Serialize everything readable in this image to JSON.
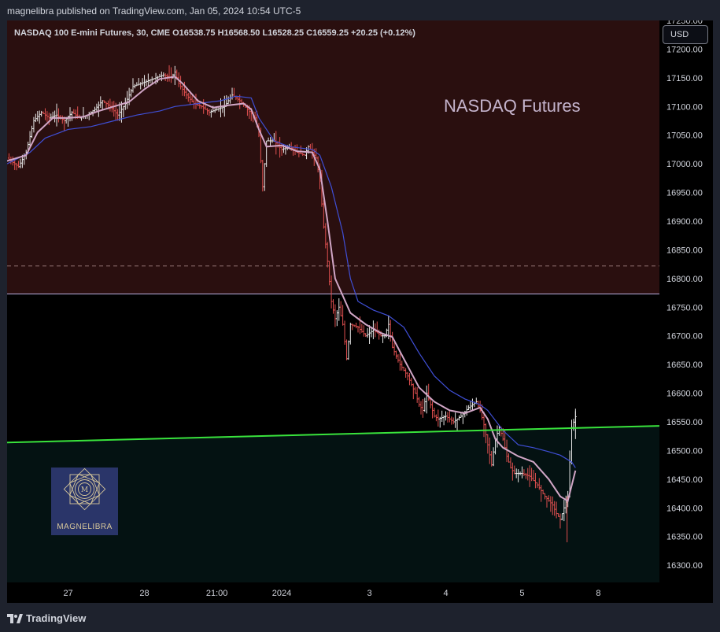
{
  "header": {
    "publisher_line": "magnelibra published on TradingView.com, Jan 05, 2024 10:54 UTC-5"
  },
  "legend": {
    "text": "NASDAQ 100 E-mini Futures, 30, CME  O16538.75  H16568.50  L16528.25  C16559.25  +20.25 (+0.12%)"
  },
  "currency_button": "USD",
  "watermark_text": "NASDAQ Futures",
  "logo_text": "MAGNELIBRA",
  "footer": {
    "brand": "TradingView"
  },
  "colors": {
    "upper_zone": "#2a0f0f",
    "lower_zone": "#041212",
    "support_line": "#39e33c",
    "ema_fast": "#d1a6c6",
    "ema_slow": "#3f4fd6",
    "candle_up": "#e8e8e8",
    "candle_down": "#e05050"
  },
  "chart_data": {
    "type": "line",
    "title": "NASDAQ 100 E-mini Futures, 30, CME",
    "xlabel": "",
    "ylabel": "",
    "currency": "USD",
    "ylim": [
      16270,
      17250
    ],
    "y_ticks": [
      17250,
      17200,
      17150,
      17100,
      17050,
      17000,
      16950,
      16900,
      16850,
      16800,
      16750,
      16700,
      16650,
      16600,
      16550,
      16500,
      16450,
      16400,
      16350,
      16300
    ],
    "y_tick_labels": [
      "17250.00",
      "17200.00",
      "17150.00",
      "17100.00",
      "17050.00",
      "17000.00",
      "16950.00",
      "16900.00",
      "16850.00",
      "16800.00",
      "16750.00",
      "16700.00",
      "16650.00",
      "16600.00",
      "16550.00",
      "16500.00",
      "16450.00",
      "16400.00",
      "16350.00",
      "16300.00"
    ],
    "x_ticks": [
      {
        "label": "27",
        "t": 16
      },
      {
        "label": "28",
        "t": 36
      },
      {
        "label": "21:00",
        "t": 55
      },
      {
        "label": "2024",
        "t": 72
      },
      {
        "label": "3",
        "t": 95
      },
      {
        "label": "4",
        "t": 115
      },
      {
        "label": "5",
        "t": 135
      },
      {
        "label": "8",
        "t": 155
      }
    ],
    "x_range": [
      0,
      171
    ],
    "ohlc": {
      "open": 16538.75,
      "high": 16568.5,
      "low": 16528.25,
      "close": 16559.25,
      "change": "+20.25 (+0.12%)"
    },
    "zones": {
      "resistance_top": 16773,
      "resistance_dashed": 16822
    },
    "support_line": {
      "t0": 0,
      "y0": 16514,
      "t1": 171,
      "y1": 16543
    },
    "series": [
      {
        "name": "",
        "kind": "price",
        "points": [
          [
            0,
            17010
          ],
          [
            3,
            16995
          ],
          [
            5,
            17020
          ],
          [
            7,
            17075
          ],
          [
            9,
            17090
          ],
          [
            11,
            17080
          ],
          [
            13,
            17085
          ],
          [
            15,
            17075
          ],
          [
            17,
            17090
          ],
          [
            19,
            17080
          ],
          [
            21,
            17085
          ],
          [
            23,
            17095
          ],
          [
            25,
            17110
          ],
          [
            27,
            17100
          ],
          [
            29,
            17085
          ],
          [
            31,
            17105
          ],
          [
            33,
            17135
          ],
          [
            35,
            17140
          ],
          [
            37,
            17145
          ],
          [
            39,
            17150
          ],
          [
            41,
            17155
          ],
          [
            43,
            17150
          ],
          [
            44,
            17160
          ],
          [
            45,
            17140
          ],
          [
            47,
            17120
          ],
          [
            49,
            17105
          ],
          [
            51,
            17100
          ],
          [
            53,
            17090
          ],
          [
            55,
            17095
          ],
          [
            57,
            17100
          ],
          [
            59,
            17120
          ],
          [
            61,
            17110
          ],
          [
            63,
            17095
          ],
          [
            65,
            17080
          ],
          [
            66,
            17050
          ],
          [
            67,
            16960
          ],
          [
            68,
            17040
          ],
          [
            70,
            17040
          ],
          [
            72,
            17025
          ],
          [
            74,
            17030
          ],
          [
            76,
            17020
          ],
          [
            78,
            17015
          ],
          [
            79,
            17030
          ],
          [
            81,
            17010
          ],
          [
            82,
            16970
          ],
          [
            83,
            16890
          ],
          [
            84,
            16830
          ],
          [
            85,
            16760
          ],
          [
            86,
            16730
          ],
          [
            87,
            16750
          ],
          [
            88,
            16720
          ],
          [
            89,
            16660
          ],
          [
            90,
            16720
          ],
          [
            92,
            16715
          ],
          [
            94,
            16700
          ],
          [
            96,
            16710
          ],
          [
            98,
            16700
          ],
          [
            99,
            16700
          ],
          [
            100,
            16720
          ],
          [
            101,
            16680
          ],
          [
            103,
            16650
          ],
          [
            105,
            16630
          ],
          [
            107,
            16600
          ],
          [
            108,
            16580
          ],
          [
            109,
            16570
          ],
          [
            110,
            16600
          ],
          [
            111,
            16580
          ],
          [
            112,
            16560
          ],
          [
            113,
            16555
          ],
          [
            115,
            16560
          ],
          [
            117,
            16550
          ],
          [
            119,
            16560
          ],
          [
            121,
            16575
          ],
          [
            123,
            16585
          ],
          [
            124,
            16570
          ],
          [
            125,
            16545
          ],
          [
            126,
            16510
          ],
          [
            127,
            16475
          ],
          [
            128,
            16520
          ],
          [
            129,
            16540
          ],
          [
            130,
            16520
          ],
          [
            131,
            16490
          ],
          [
            132,
            16470
          ],
          [
            133,
            16460
          ],
          [
            135,
            16460
          ],
          [
            137,
            16455
          ],
          [
            139,
            16440
          ],
          [
            141,
            16420
          ],
          [
            143,
            16405
          ],
          [
            144,
            16390
          ],
          [
            145,
            16380
          ],
          [
            146,
            16400
          ],
          [
            147,
            16420
          ],
          [
            148,
            16540
          ],
          [
            149,
            16559
          ]
        ]
      },
      {
        "name": "",
        "kind": "ema_fast",
        "points": [
          [
            0,
            17005
          ],
          [
            5,
            17015
          ],
          [
            8,
            17055
          ],
          [
            12,
            17080
          ],
          [
            16,
            17080
          ],
          [
            20,
            17082
          ],
          [
            24,
            17092
          ],
          [
            28,
            17100
          ],
          [
            32,
            17108
          ],
          [
            36,
            17130
          ],
          [
            40,
            17148
          ],
          [
            44,
            17152
          ],
          [
            46,
            17140
          ],
          [
            50,
            17110
          ],
          [
            54,
            17098
          ],
          [
            58,
            17102
          ],
          [
            62,
            17105
          ],
          [
            64,
            17095
          ],
          [
            66,
            17060
          ],
          [
            68,
            17030
          ],
          [
            72,
            17032
          ],
          [
            76,
            17022
          ],
          [
            80,
            17020
          ],
          [
            82,
            16990
          ],
          [
            84,
            16900
          ],
          [
            86,
            16800
          ],
          [
            88,
            16770
          ],
          [
            90,
            16740
          ],
          [
            94,
            16720
          ],
          [
            98,
            16705
          ],
          [
            101,
            16698
          ],
          [
            104,
            16660
          ],
          [
            108,
            16610
          ],
          [
            112,
            16585
          ],
          [
            116,
            16570
          ],
          [
            120,
            16565
          ],
          [
            124,
            16575
          ],
          [
            126,
            16555
          ],
          [
            128,
            16520
          ],
          [
            130,
            16505
          ],
          [
            134,
            16490
          ],
          [
            138,
            16480
          ],
          [
            142,
            16450
          ],
          [
            145,
            16420
          ],
          [
            147,
            16412
          ],
          [
            149,
            16465
          ]
        ]
      },
      {
        "name": "",
        "kind": "ema_slow",
        "points": [
          [
            0,
            17000
          ],
          [
            6,
            17020
          ],
          [
            10,
            17045
          ],
          [
            16,
            17060
          ],
          [
            22,
            17065
          ],
          [
            28,
            17075
          ],
          [
            34,
            17085
          ],
          [
            40,
            17092
          ],
          [
            44,
            17100
          ],
          [
            50,
            17105
          ],
          [
            56,
            17110
          ],
          [
            60,
            17118
          ],
          [
            64,
            17115
          ],
          [
            66,
            17080
          ],
          [
            70,
            17040
          ],
          [
            74,
            17030
          ],
          [
            80,
            17025
          ],
          [
            82,
            17015
          ],
          [
            85,
            16960
          ],
          [
            88,
            16880
          ],
          [
            90,
            16800
          ],
          [
            92,
            16760
          ],
          [
            96,
            16745
          ],
          [
            100,
            16735
          ],
          [
            104,
            16715
          ],
          [
            108,
            16670
          ],
          [
            112,
            16630
          ],
          [
            116,
            16605
          ],
          [
            120,
            16590
          ],
          [
            124,
            16580
          ],
          [
            126,
            16570
          ],
          [
            130,
            16535
          ],
          [
            134,
            16510
          ],
          [
            138,
            16505
          ],
          [
            142,
            16498
          ],
          [
            145,
            16492
          ],
          [
            148,
            16480
          ],
          [
            149,
            16470
          ]
        ]
      }
    ]
  }
}
